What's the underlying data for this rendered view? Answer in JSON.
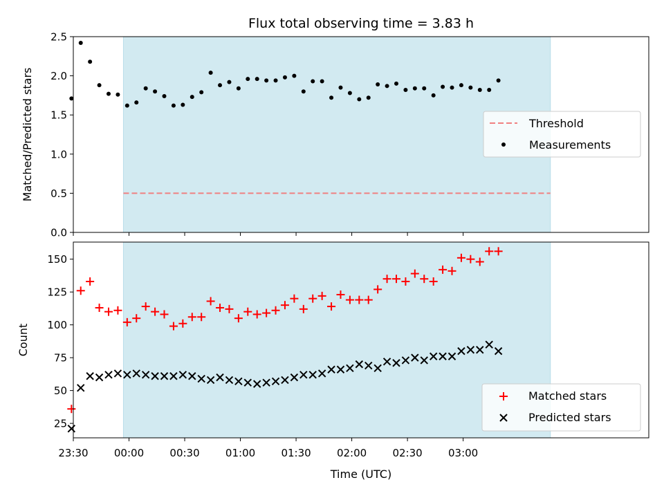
{
  "chart_data": [
    {
      "type": "scatter",
      "title": "Flux total observing time = 3.83 h",
      "xlabel": "",
      "ylabel": "Matched/Predicted stars",
      "ylim": [
        0,
        2.5
      ],
      "yticks": [
        "0.0",
        "0.5",
        "1.0",
        "1.5",
        "2.0",
        "2.5"
      ],
      "xlim_minutes": [
        -30,
        280
      ],
      "observing_span_minutes": [
        -3,
        227
      ],
      "shade_color": "#add8e6",
      "threshold": {
        "name": "Threshold",
        "value": 0.5,
        "color": "#f08080"
      },
      "series": [
        {
          "name": "Measurements",
          "color": "#000000",
          "marker": "dot",
          "x": [
            "23:29",
            "23:34",
            "23:39",
            "23:44",
            "23:49",
            "23:54",
            "23:59",
            "00:04",
            "00:09",
            "00:14",
            "00:19",
            "00:24",
            "00:29",
            "00:34",
            "00:39",
            "00:44",
            "00:49",
            "00:54",
            "00:59",
            "01:04",
            "01:09",
            "01:14",
            "01:19",
            "01:24",
            "01:29",
            "01:34",
            "01:39",
            "01:44",
            "01:49",
            "01:54",
            "01:59",
            "02:04",
            "02:09",
            "02:14",
            "02:19",
            "02:24",
            "02:29",
            "02:34",
            "02:39",
            "02:44",
            "02:49",
            "02:54",
            "02:59",
            "03:04",
            "03:09",
            "03:14",
            "03:19"
          ],
          "values": [
            1.71,
            2.42,
            2.18,
            1.88,
            1.77,
            1.76,
            1.62,
            1.66,
            1.84,
            1.8,
            1.74,
            1.62,
            1.63,
            1.73,
            1.79,
            2.04,
            1.88,
            1.92,
            1.84,
            1.96,
            1.96,
            1.94,
            1.94,
            1.98,
            2.0,
            1.8,
            1.93,
            1.93,
            1.72,
            1.85,
            1.78,
            1.7,
            1.72,
            1.89,
            1.87,
            1.9,
            1.82,
            1.84,
            1.84,
            1.75,
            1.86,
            1.85,
            1.88,
            1.85,
            1.82,
            1.82,
            1.94
          ]
        }
      ],
      "legend": [
        "Threshold",
        "Measurements"
      ],
      "legend_position": "center-right"
    },
    {
      "type": "scatter",
      "xlabel": "Time (UTC)",
      "ylabel": "Count",
      "ylim": [
        14,
        163
      ],
      "yticks": [
        "25",
        "50",
        "75",
        "100",
        "125",
        "150"
      ],
      "xticks": [
        "23:30",
        "00:00",
        "00:30",
        "01:00",
        "01:30",
        "02:00",
        "02:30",
        "03:00"
      ],
      "xlim_minutes": [
        -30,
        280
      ],
      "observing_span_minutes": [
        -3,
        227
      ],
      "series": [
        {
          "name": "Matched stars",
          "color": "#ff0000",
          "marker": "plus",
          "x": [
            "23:29",
            "23:34",
            "23:39",
            "23:44",
            "23:49",
            "23:54",
            "23:59",
            "00:04",
            "00:09",
            "00:14",
            "00:19",
            "00:24",
            "00:29",
            "00:34",
            "00:39",
            "00:44",
            "00:49",
            "00:54",
            "00:59",
            "01:04",
            "01:09",
            "01:14",
            "01:19",
            "01:24",
            "01:29",
            "01:34",
            "01:39",
            "01:44",
            "01:49",
            "01:54",
            "01:59",
            "02:04",
            "02:09",
            "02:14",
            "02:19",
            "02:24",
            "02:29",
            "02:34",
            "02:39",
            "02:44",
            "02:49",
            "02:54",
            "02:59",
            "03:04",
            "03:09",
            "03:14",
            "03:19"
          ],
          "values": [
            36,
            126,
            133,
            113,
            110,
            111,
            102,
            105,
            114,
            110,
            108,
            99,
            101,
            106,
            106,
            118,
            113,
            112,
            105,
            110,
            108,
            109,
            111,
            115,
            120,
            112,
            120,
            122,
            114,
            123,
            119,
            119,
            119,
            127,
            135,
            135,
            133,
            139,
            135,
            133,
            142,
            141,
            151,
            150,
            148,
            156,
            156
          ]
        },
        {
          "name": "Predicted stars",
          "color": "#000000",
          "marker": "x",
          "x": [
            "23:29",
            "23:34",
            "23:39",
            "23:44",
            "23:49",
            "23:54",
            "23:59",
            "00:04",
            "00:09",
            "00:14",
            "00:19",
            "00:24",
            "00:29",
            "00:34",
            "00:39",
            "00:44",
            "00:49",
            "00:54",
            "00:59",
            "01:04",
            "01:09",
            "01:14",
            "01:19",
            "01:24",
            "01:29",
            "01:34",
            "01:39",
            "01:44",
            "01:49",
            "01:54",
            "01:59",
            "02:04",
            "02:09",
            "02:14",
            "02:19",
            "02:24",
            "02:29",
            "02:34",
            "02:39",
            "02:44",
            "02:49",
            "02:54",
            "02:59",
            "03:04",
            "03:09",
            "03:14",
            "03:19"
          ],
          "values": [
            21,
            52,
            61,
            60,
            62,
            63,
            62,
            63,
            62,
            61,
            61,
            61,
            62,
            61,
            59,
            58,
            60,
            58,
            57,
            56,
            55,
            56,
            57,
            58,
            60,
            62,
            62,
            63,
            66,
            66,
            67,
            70,
            69,
            67,
            72,
            71,
            73,
            75,
            73,
            76,
            76,
            76,
            80,
            81,
            81,
            85,
            80
          ]
        }
      ],
      "legend": [
        "Matched stars",
        "Predicted stars"
      ],
      "legend_position": "bottom-right"
    }
  ]
}
